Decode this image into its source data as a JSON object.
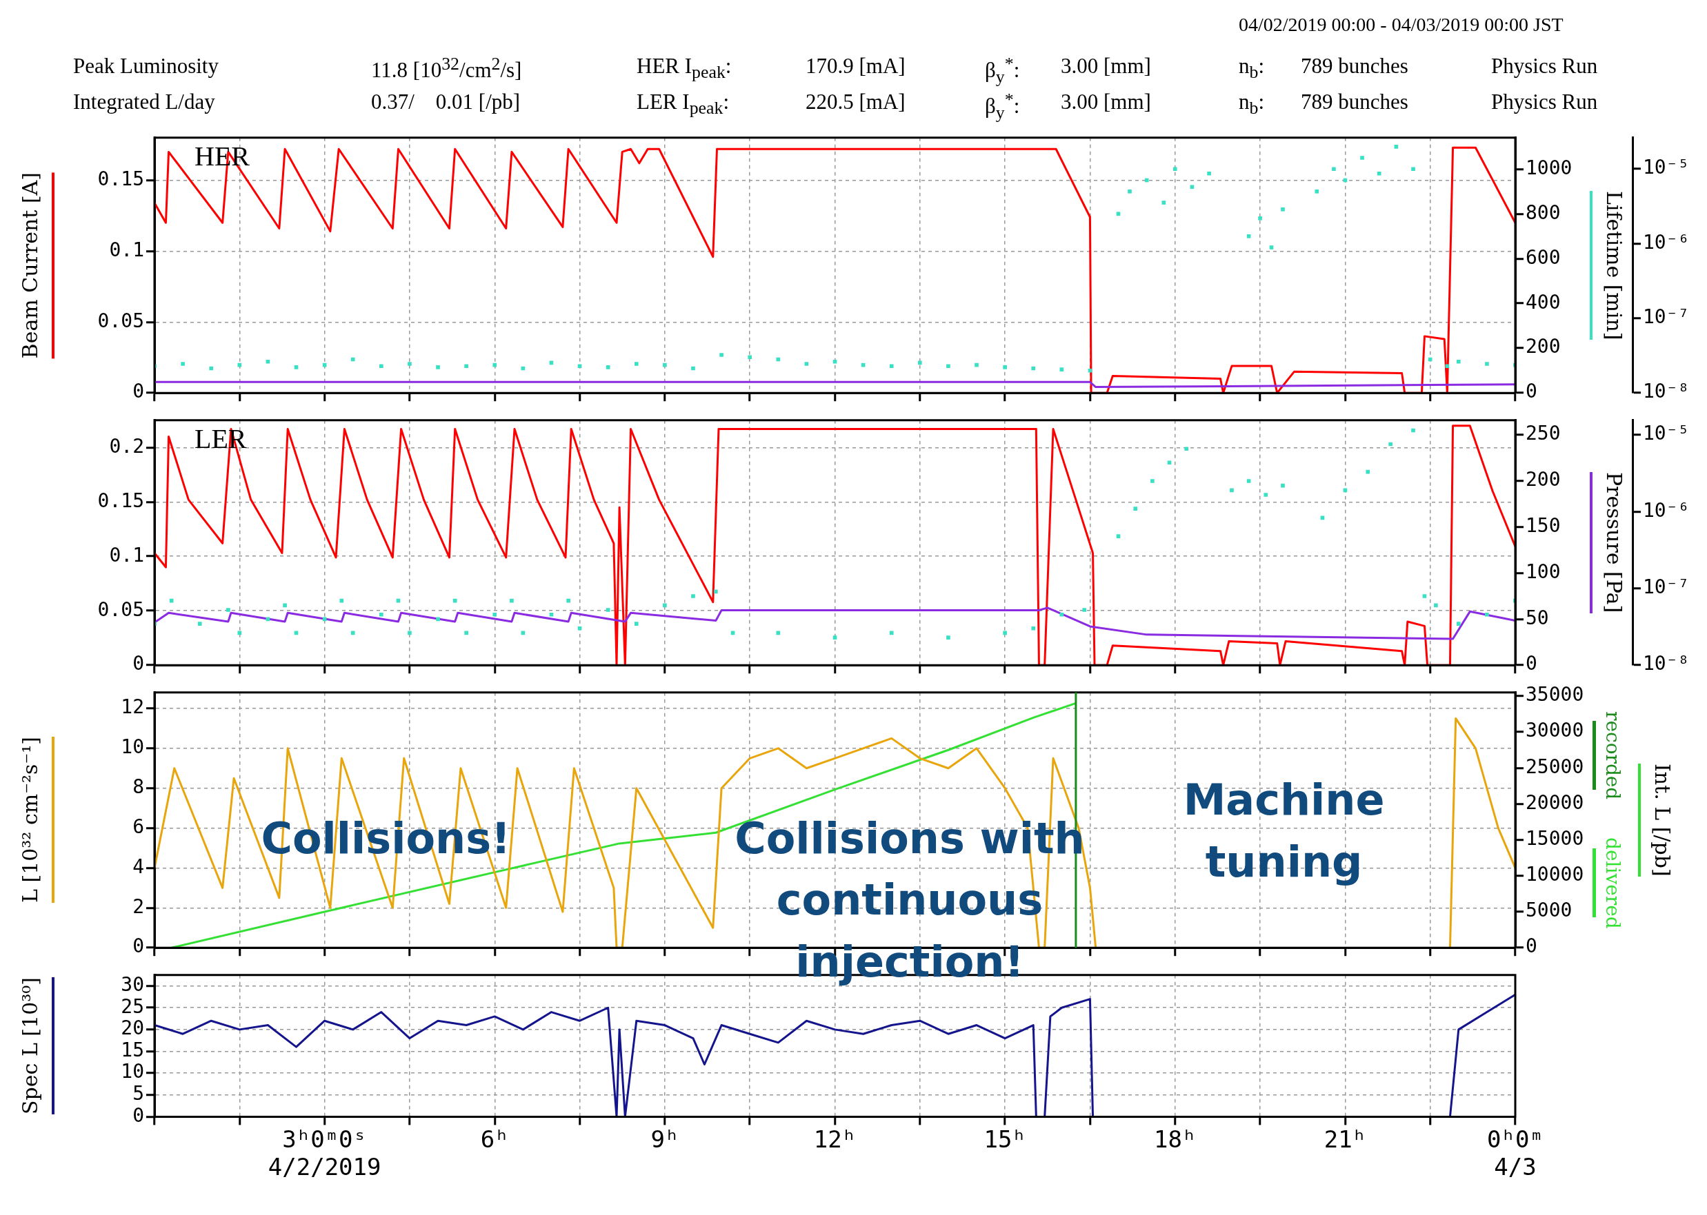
{
  "chart_data": [
    {
      "type": "line",
      "title": "HER",
      "subtitle": "04/02/2019 00:00 - 04/03/2019 00:00 JST",
      "annotations": [
        "Peak Luminosity",
        "11.8 [10$^{32}$/cm$^{2}$/s]",
        "HER I$_{peak}$:",
        "170.9 [mA]",
        "β$_{y}$$^{*}$:",
        "3.00 [mm]",
        "n$_{b}$:",
        "789 bunches",
        "Physics Run",
        "Integrated L/day",
        "0.37/    0.01 [/pb]",
        "LER I$_{peak}$:",
        "220.5 [mA]",
        "β$_{y}$$^{*}$:",
        "3.00 [mm]",
        "n$_{b}$:",
        "789 bunches",
        "Physics Run"
      ],
      "ylabel": "Beam Current [A]",
      "y2label": "Lifetime [min]",
      "xlim": [
        0,
        24
      ],
      "xticks": [
        {
          "value": 0,
          "label": null
        },
        {
          "value": 1.5,
          "label": null
        },
        {
          "value": 3,
          "label": null
        },
        {
          "value": 4.5,
          "label": null
        },
        {
          "value": 6,
          "label": null
        },
        {
          "value": 7.5,
          "label": null
        },
        {
          "value": 9,
          "label": null
        },
        {
          "value": 10.5,
          "label": null
        },
        {
          "value": 12,
          "label": null
        },
        {
          "value": 13.5,
          "label": null
        },
        {
          "value": 15,
          "label": null
        },
        {
          "value": 16.5,
          "label": null
        },
        {
          "value": 18,
          "label": null
        },
        {
          "value": 19.5,
          "label": null
        },
        {
          "value": 21,
          "label": null
        },
        {
          "value": 22.5,
          "label": null
        },
        {
          "value": 24,
          "label": null
        }
      ],
      "ylim": [
        0,
        0.18
      ],
      "yticks": [
        0,
        0.05,
        0.1,
        0.15
      ],
      "y2lim": [
        0,
        1140
      ],
      "y2ticks": [
        0,
        200,
        400,
        600,
        800,
        1000
      ],
      "y3lim": [
        1e-08,
        2.6e-05
      ],
      "y3ticks": [
        {
          "value": 1e-08,
          "label": "10⁻⁸"
        },
        {
          "value": 1e-07,
          "label": "10⁻⁷"
        },
        {
          "value": 1e-06,
          "label": "10⁻⁶"
        },
        {
          "value": 1e-05,
          "label": "10⁻⁵"
        }
      ],
      "log": "y3",
      "grid": true,
      "tick_labels": "y",
      "series": [
        {
          "type": "scatter",
          "marker": "square",
          "axis": "y2",
          "color": "#3ae0c4",
          "x": [
            0,
            0.5,
            1,
            1.5,
            2,
            2.5,
            3,
            3.5,
            4,
            4.5,
            5,
            5.5,
            6,
            6.5,
            7,
            7.5,
            8,
            8.5,
            9,
            9.5,
            10,
            10.5,
            11,
            11.5,
            12,
            12.5,
            13,
            13.5,
            14,
            14.5,
            15,
            15.5,
            16,
            16.5,
            17,
            17.2,
            17.5,
            17.8,
            18,
            18.3,
            18.6,
            19.3,
            19.5,
            19.7,
            19.9,
            20.5,
            20.8,
            21,
            21.3,
            21.6,
            21.9,
            22.2,
            22.5,
            22.8,
            23,
            23.5,
            24
          ],
          "values": [
            120,
            130,
            110,
            125,
            140,
            115,
            125,
            150,
            120,
            130,
            115,
            120,
            125,
            110,
            135,
            120,
            115,
            130,
            125,
            110,
            170,
            160,
            150,
            130,
            140,
            125,
            120,
            135,
            120,
            125,
            115,
            110,
            105,
            100,
            800,
            900,
            950,
            850,
            1000,
            920,
            980,
            700,
            780,
            650,
            820,
            900,
            1000,
            950,
            1050,
            980,
            1100,
            1000,
            150,
            120,
            140,
            130,
            125
          ]
        },
        {
          "type": "line",
          "axis": "y3",
          "color": "#8a2be2",
          "x": [
            0,
            16.5,
            16.6,
            24
          ],
          "values": [
            1.4e-08,
            1.4e-08,
            1.2e-08,
            1.3e-08
          ]
        },
        {
          "type": "line",
          "axis": "y",
          "color": "#ff0000",
          "x": [
            0,
            0.2,
            0.25,
            1.2,
            1.3,
            2.2,
            2.3,
            3.1,
            3.25,
            4.2,
            4.3,
            5.2,
            5.3,
            6.2,
            6.3,
            7.2,
            7.3,
            8.15,
            8.25,
            8.4,
            8.55,
            8.7,
            8.9,
            9.85,
            9.92,
            15.9,
            16.5,
            16.52,
            16.8,
            16.9,
            18.8,
            18.85,
            19.0,
            19.7,
            19.8,
            19.9,
            20.1,
            22.0,
            22.05,
            22.35,
            22.4,
            22.75,
            22.8,
            22.9,
            23.3,
            24
          ],
          "values": [
            0.134,
            0.12,
            0.17,
            0.12,
            0.17,
            0.116,
            0.172,
            0.114,
            0.172,
            0.116,
            0.172,
            0.116,
            0.172,
            0.116,
            0.17,
            0.117,
            0.172,
            0.12,
            0.17,
            0.172,
            0.162,
            0.172,
            0.172,
            0.096,
            0.172,
            0.172,
            0.124,
            0,
            0,
            0.012,
            0.01,
            0,
            0.019,
            0.019,
            0,
            0.005,
            0.015,
            0.014,
            0,
            0,
            0.04,
            0.038,
            0,
            0.173,
            0.173,
            0.12
          ]
        }
      ]
    },
    {
      "type": "line",
      "title": "LER",
      "y3label": "Pressure [Pa]",
      "xlim": [
        0,
        24
      ],
      "xticks": [
        {
          "value": 0,
          "label": null
        },
        {
          "value": 1.5,
          "label": null
        },
        {
          "value": 3,
          "label": null
        },
        {
          "value": 4.5,
          "label": null
        },
        {
          "value": 6,
          "label": null
        },
        {
          "value": 7.5,
          "label": null
        },
        {
          "value": 9,
          "label": null
        },
        {
          "value": 10.5,
          "label": null
        },
        {
          "value": 12,
          "label": null
        },
        {
          "value": 13.5,
          "label": null
        },
        {
          "value": 15,
          "label": null
        },
        {
          "value": 16.5,
          "label": null
        },
        {
          "value": 18,
          "label": null
        },
        {
          "value": 19.5,
          "label": null
        },
        {
          "value": 21,
          "label": null
        },
        {
          "value": 22.5,
          "label": null
        },
        {
          "value": 24,
          "label": null
        }
      ],
      "ylim": [
        0,
        0.225
      ],
      "yticks": [
        0,
        0.05,
        0.1,
        0.15,
        0.2
      ],
      "y2lim": [
        0,
        266
      ],
      "y2ticks": [
        0,
        50,
        100,
        150,
        200,
        250
      ],
      "y3lim": [
        1e-08,
        1.55e-05
      ],
      "y3ticks": [
        {
          "value": 1e-08,
          "label": "10⁻⁸"
        },
        {
          "value": 1e-07,
          "label": "10⁻⁷"
        },
        {
          "value": 1e-06,
          "label": "10⁻⁶"
        },
        {
          "value": 1e-05,
          "label": "10⁻⁵"
        }
      ],
      "log": "y3",
      "grid": true,
      "tick_labels": "y",
      "series": [
        {
          "type": "scatter",
          "marker": "square",
          "axis": "y2",
          "color": "#3ae0c4",
          "x": [
            0,
            0.3,
            0.8,
            1.3,
            1.5,
            2,
            2.3,
            2.5,
            3,
            3.3,
            3.5,
            4,
            4.3,
            4.5,
            5,
            5.3,
            5.5,
            6,
            6.3,
            6.5,
            7,
            7.3,
            7.5,
            8,
            8.5,
            9,
            9.5,
            9.9,
            10.2,
            11,
            12,
            13,
            14,
            15,
            15.5,
            16,
            16.4,
            17,
            17.3,
            17.6,
            17.9,
            18.2,
            19,
            19.3,
            19.6,
            19.9,
            20.6,
            21,
            21.4,
            21.8,
            22.2,
            22.4,
            22.6,
            23,
            23.5,
            24
          ],
          "values": [
            45,
            70,
            45,
            60,
            35,
            50,
            65,
            35,
            50,
            70,
            35,
            55,
            70,
            35,
            50,
            70,
            35,
            55,
            70,
            35,
            55,
            70,
            40,
            60,
            45,
            65,
            75,
            80,
            35,
            35,
            30,
            35,
            30,
            35,
            40,
            55,
            60,
            140,
            170,
            200,
            220,
            235,
            190,
            200,
            185,
            195,
            160,
            190,
            210,
            240,
            255,
            75,
            65,
            45,
            55,
            70
          ]
        },
        {
          "type": "line",
          "axis": "y3",
          "color": "#8a2be2",
          "x": [
            0,
            0.25,
            1.3,
            1.35,
            2.3,
            2.35,
            3.3,
            3.35,
            4.3,
            4.35,
            5.3,
            5.35,
            6.3,
            6.35,
            7.3,
            7.35,
            8.3,
            8.4,
            9.9,
            10,
            15.6,
            15.75,
            16.5,
            17.5,
            22.9,
            23.2,
            24
          ],
          "values": [
            3.6e-08,
            4.8e-08,
            3.7e-08,
            4.8e-08,
            3.7e-08,
            4.8e-08,
            3.7e-08,
            4.8e-08,
            3.7e-08,
            4.8e-08,
            3.7e-08,
            4.8e-08,
            3.7e-08,
            4.8e-08,
            3.7e-08,
            4.8e-08,
            3.7e-08,
            4.8e-08,
            3.8e-08,
            5.2e-08,
            5.2e-08,
            5.6e-08,
            3.2e-08,
            2.5e-08,
            2.2e-08,
            5e-08,
            3.8e-08
          ]
        },
        {
          "type": "line",
          "axis": "y",
          "color": "#ff0000",
          "x": [
            0,
            0.2,
            0.25,
            0.6,
            1.2,
            1.35,
            1.7,
            2.25,
            2.35,
            2.75,
            3.2,
            3.35,
            3.75,
            4.2,
            4.35,
            4.75,
            5.2,
            5.3,
            5.7,
            6.2,
            6.35,
            6.75,
            7.25,
            7.35,
            7.75,
            8.1,
            8.15,
            8.2,
            8.3,
            8.4,
            8.9,
            9.85,
            9.95,
            15.55,
            15.6,
            15.7,
            15.85,
            16.25,
            16.55,
            16.58,
            16.8,
            16.9,
            18.8,
            18.85,
            18.95,
            19.8,
            19.85,
            19.95,
            22.0,
            22.05,
            22.1,
            22.4,
            22.45,
            22.85,
            22.9,
            23.2,
            23.6,
            24
          ],
          "values": [
            0.103,
            0.09,
            0.21,
            0.152,
            0.112,
            0.217,
            0.152,
            0.103,
            0.217,
            0.152,
            0.099,
            0.217,
            0.152,
            0.099,
            0.217,
            0.152,
            0.099,
            0.217,
            0.152,
            0.099,
            0.217,
            0.152,
            0.099,
            0.217,
            0.152,
            0.112,
            0,
            0.145,
            0,
            0.217,
            0.152,
            0.058,
            0.217,
            0.217,
            0,
            0,
            0.217,
            0.152,
            0.103,
            0,
            0,
            0.018,
            0.013,
            0,
            0.022,
            0.02,
            0,
            0.022,
            0.013,
            0,
            0.04,
            0.036,
            0,
            0,
            0.22,
            0.22,
            0.16,
            0.109
          ]
        }
      ]
    },
    {
      "type": "line",
      "ylabel": "L [10³² cm⁻²s⁻¹]",
      "y2label": "Int. L [/pb]",
      "legend": "right",
      "annotations": [
        "Collisions!",
        "Collisions with continuous injection!",
        "Machine tuning"
      ],
      "ref_lines": [
        {
          "axis": "x",
          "value": 16.25,
          "label": "recorded",
          "color": "#1a8a1a"
        }
      ],
      "xlim": [
        0,
        24
      ],
      "xticks": [
        {
          "value": 0,
          "label": null
        },
        {
          "value": 1.5,
          "label": null
        },
        {
          "value": 3,
          "label": null
        },
        {
          "value": 4.5,
          "label": null
        },
        {
          "value": 6,
          "label": null
        },
        {
          "value": 7.5,
          "label": null
        },
        {
          "value": 9,
          "label": null
        },
        {
          "value": 10.5,
          "label": null
        },
        {
          "value": 12,
          "label": null
        },
        {
          "value": 13.5,
          "label": null
        },
        {
          "value": 15,
          "label": null
        },
        {
          "value": 16.5,
          "label": null
        },
        {
          "value": 18,
          "label": null
        },
        {
          "value": 19.5,
          "label": null
        },
        {
          "value": 21,
          "label": null
        },
        {
          "value": 22.5,
          "label": null
        },
        {
          "value": 24,
          "label": null
        }
      ],
      "ylim": [
        0,
        12.8
      ],
      "yticks": [
        0,
        2,
        4,
        6,
        8,
        10,
        12
      ],
      "y2lim": [
        0,
        35500
      ],
      "y2ticks": [
        0,
        5000,
        10000,
        15000,
        20000,
        25000,
        30000,
        35000
      ],
      "grid": true,
      "tick_labels": "y",
      "series": [
        {
          "type": "line",
          "axis": "y",
          "color": "#e8a50c",
          "x": [
            0,
            0.35,
            1.2,
            1.4,
            2.2,
            2.35,
            3.1,
            3.3,
            4.2,
            4.4,
            5.2,
            5.4,
            6.2,
            6.4,
            7.2,
            7.4,
            8.1,
            8.15,
            8.25,
            8.5,
            9.85,
            10,
            10.5,
            11,
            11.5,
            12,
            12.5,
            13,
            13.5,
            14,
            14.5,
            15,
            15.4,
            15.6,
            15.7,
            15.85,
            16.3,
            16.5,
            16.6,
            17,
            22.8,
            22.85,
            22.95,
            23.3,
            23.7,
            24
          ],
          "values": [
            4,
            9,
            3,
            8.5,
            2.5,
            10,
            2,
            9.5,
            2,
            9.5,
            2.2,
            9,
            2,
            9,
            1.8,
            9,
            3,
            0,
            0,
            8,
            1,
            8,
            9.5,
            10,
            9,
            9.5,
            10,
            10.5,
            9.5,
            9,
            10,
            8,
            6,
            0,
            0,
            9.5,
            6,
            3,
            0,
            null,
            null,
            0,
            11.5,
            10,
            6,
            4
          ]
        },
        {
          "type": "line",
          "name": "delivered",
          "axis": "y2",
          "color": "#33e033",
          "x": [
            0.3,
            3,
            6,
            8.2,
            9.9,
            12,
            14,
            15.5,
            16.25
          ],
          "values": [
            0,
            5000,
            10500,
            14500,
            16000,
            22000,
            27500,
            32000,
            34000
          ]
        }
      ]
    },
    {
      "type": "line",
      "ylabel": "Spec L [10³⁰]",
      "xlim": [
        0,
        24
      ],
      "xticks": [
        {
          "value": 0,
          "label": null
        },
        {
          "value": 1.5,
          "label": null
        },
        {
          "value": 3,
          "label": "3ʰ0ᵐ0ˢ\n4/2/2019"
        },
        {
          "value": 4.5,
          "label": null
        },
        {
          "value": 6,
          "label": "6ʰ"
        },
        {
          "value": 7.5,
          "label": null
        },
        {
          "value": 9,
          "label": "9ʰ"
        },
        {
          "value": 10.5,
          "label": null
        },
        {
          "value": 12,
          "label": "12ʰ"
        },
        {
          "value": 13.5,
          "label": null
        },
        {
          "value": 15,
          "label": "15ʰ"
        },
        {
          "value": 16.5,
          "label": null
        },
        {
          "value": 18,
          "label": "18ʰ"
        },
        {
          "value": 19.5,
          "label": null
        },
        {
          "value": 21,
          "label": "21ʰ"
        },
        {
          "value": 22.5,
          "label": null
        },
        {
          "value": 24,
          "label": "0ʰ0ᵐ\n4/3"
        }
      ],
      "ylim": [
        0,
        32.5
      ],
      "yticks": [
        0,
        5,
        10,
        15,
        20,
        25,
        30
      ],
      "grid": true,
      "series": [
        {
          "type": "line",
          "axis": "y",
          "color": "#14148c",
          "x": [
            0,
            0.5,
            1,
            1.5,
            2,
            2.5,
            3,
            3.5,
            4,
            4.5,
            5,
            5.5,
            6,
            6.5,
            7,
            7.5,
            8,
            8.15,
            8.2,
            8.3,
            8.5,
            9,
            9.5,
            9.7,
            10,
            10.5,
            11,
            11.5,
            12,
            12.5,
            13,
            13.5,
            14,
            14.5,
            15,
            15.5,
            15.55,
            15.7,
            15.8,
            16,
            16.5,
            16.55,
            22.85,
            23,
            23.5,
            24
          ],
          "values": [
            21,
            19,
            22,
            20,
            21,
            16,
            22,
            20,
            24,
            18,
            22,
            21,
            23,
            20,
            24,
            22,
            25,
            0,
            20,
            0,
            22,
            21,
            18,
            12,
            21,
            19,
            17,
            22,
            20,
            19,
            21,
            22,
            19,
            21,
            18,
            21,
            0,
            0,
            23,
            25,
            27,
            0,
            0,
            20,
            24,
            28
          ]
        }
      ]
    }
  ]
}
